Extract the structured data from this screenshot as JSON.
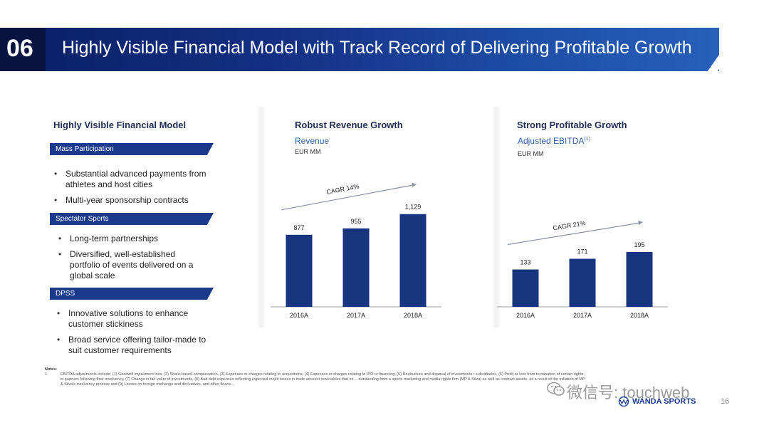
{
  "header": {
    "section_number": "06",
    "title": "Highly Visible Financial Model with Track Record of Delivering Profitable Growth"
  },
  "left": {
    "title": "Highly Visible Financial Model",
    "sections": [
      {
        "tag": "Mass Participation",
        "bullets": [
          "Substantial advanced payments from athletes and host cities",
          "Multi-year sponsorship contracts"
        ]
      },
      {
        "tag": "Spectator Sports",
        "bullets": [
          "Long-term partnerships",
          "Diversified, well-established portfolio of events delivered on a global scale"
        ]
      },
      {
        "tag": "DPSS",
        "bullets": [
          "Innovative solutions to enhance customer stickiness",
          "Broad service offering tailor-made to suit customer requirements"
        ]
      }
    ]
  },
  "chart_data": [
    {
      "type": "bar",
      "title": "Robust Revenue Growth",
      "subtitle": "Revenue",
      "unit": "EUR MM",
      "categories": [
        "2016A",
        "2017A",
        "2018A"
      ],
      "values": [
        877,
        955,
        1129
      ],
      "value_labels": [
        "877",
        "955",
        "1,129"
      ],
      "annotation": "CAGR 14%",
      "ylim": [
        0,
        1300
      ],
      "color": "#17357f"
    },
    {
      "type": "bar",
      "title": "Strong Profitable Growth",
      "subtitle": "Adjusted EBITDA",
      "subtitle_sup": "(1)",
      "unit": "EUR MM",
      "categories": [
        "2016A",
        "2017A",
        "2018A"
      ],
      "values": [
        133,
        171,
        195
      ],
      "value_labels": [
        "133",
        "171",
        "195"
      ],
      "annotation": "CAGR 21%",
      "ylim": [
        0,
        380
      ],
      "color": "#17357f"
    }
  ],
  "notes": {
    "label": "Notes:",
    "number": "1.",
    "text": "EBITDA adjustments include: (1) Goodwill impairment loss, (2) Share-based compensation, (3) Expenses or charges relating to acquisitions, (4) Expenses or charges relating to IPO or financing, (5) Restructure and disposal of investments / subsidiaries, (6) Profit or loss from termination of certain rights-in partners following their insolvency, (7) Change in fair value of investments, (8) Bad debt expenses reflecting expected credit losses in trade account receivables that ex… outstanding from a sports marketing and media rights firm (MP & Silva) as well as contract assets, as a result of the initiation of MP & Silva's insolvency process and (9) Losses on foreign exchange and derivatives, and other financ…"
  },
  "watermark": "微信号: touchweb",
  "logo_text": "WANDA SPORTS",
  "page_number": "16",
  "colors": {
    "navy": "#17357f",
    "tag_blue": "#1b3a8c",
    "accent_text": "#2f5fa8"
  }
}
